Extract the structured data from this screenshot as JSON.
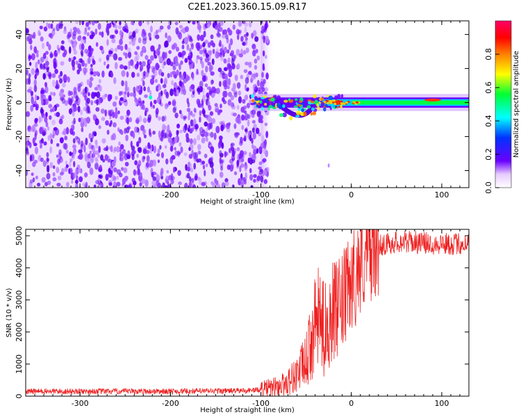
{
  "title": "C2E1.2023.360.15.09.R17",
  "chart_data": [
    {
      "type": "heatmap",
      "xlabel": "Height of straight line (km)",
      "ylabel": "Frequency (Hz)",
      "xlim": [
        -360,
        130
      ],
      "ylim": [
        -50,
        48
      ],
      "xticks": [
        -300,
        -200,
        -100,
        0,
        100
      ],
      "xtick_labels": [
        "-300",
        "-200",
        "-100",
        "0",
        "100"
      ],
      "yticks": [
        -40,
        -20,
        0,
        20,
        40
      ],
      "ytick_labels": [
        "-40",
        "-20",
        "0",
        "20",
        "40"
      ],
      "colorbar": {
        "label": "Normalized spectral amplitude",
        "range": [
          0,
          1
        ],
        "ticks": [
          0.0,
          0.2,
          0.4,
          0.6,
          0.8
        ],
        "tick_labels": [
          "0.0",
          "0.2",
          "0.4",
          "0.6",
          "0.8"
        ],
        "colormap": [
          "#ffffff",
          "#6a00ff",
          "#0033ff",
          "#00ffff",
          "#00ff33",
          "#ffff00",
          "#ff8000",
          "#ff0000",
          "#ff0066"
        ]
      },
      "features": {
        "noise_region_x": [
          -360,
          -100
        ],
        "noise_fade_x": [
          -100,
          -85
        ],
        "signal_band_x": [
          -110,
          130
        ],
        "signal_center_frequency": 0,
        "signal_dip": {
          "x": -55,
          "frequency": -12
        }
      }
    },
    {
      "type": "line",
      "xlabel": "Height of straight line (km)",
      "ylabel": "SNR (10 * v/v)",
      "xlim": [
        -360,
        130
      ],
      "ylim": [
        0,
        5200
      ],
      "xticks": [
        -300,
        -200,
        -100,
        0,
        100
      ],
      "xtick_labels": [
        "-300",
        "-200",
        "-100",
        "0",
        "100"
      ],
      "yticks": [
        0,
        1000,
        2000,
        3000,
        4000,
        5000
      ],
      "ytick_labels": [
        "0",
        "1000",
        "2000",
        "3000",
        "4000",
        "5000"
      ],
      "series": [
        {
          "color": "#ee2222",
          "x": [
            -360,
            -300,
            -200,
            -120,
            -100,
            -80,
            -70,
            -60,
            -50,
            -45,
            -40,
            -35,
            -30,
            -25,
            -20,
            -15,
            -10,
            -5,
            0,
            5,
            10,
            20,
            30,
            40,
            50,
            60,
            70,
            80,
            90,
            100,
            110,
            120,
            130
          ],
          "y": [
            150,
            150,
            150,
            170,
            200,
            300,
            450,
            700,
            1100,
            1600,
            2200,
            2500,
            2000,
            2400,
            2700,
            2600,
            2900,
            3200,
            3500,
            3800,
            4100,
            4500,
            4700,
            4750,
            4800,
            4820,
            4800,
            4780,
            4750,
            4760,
            4740,
            4750,
            4760
          ]
        }
      ]
    }
  ]
}
